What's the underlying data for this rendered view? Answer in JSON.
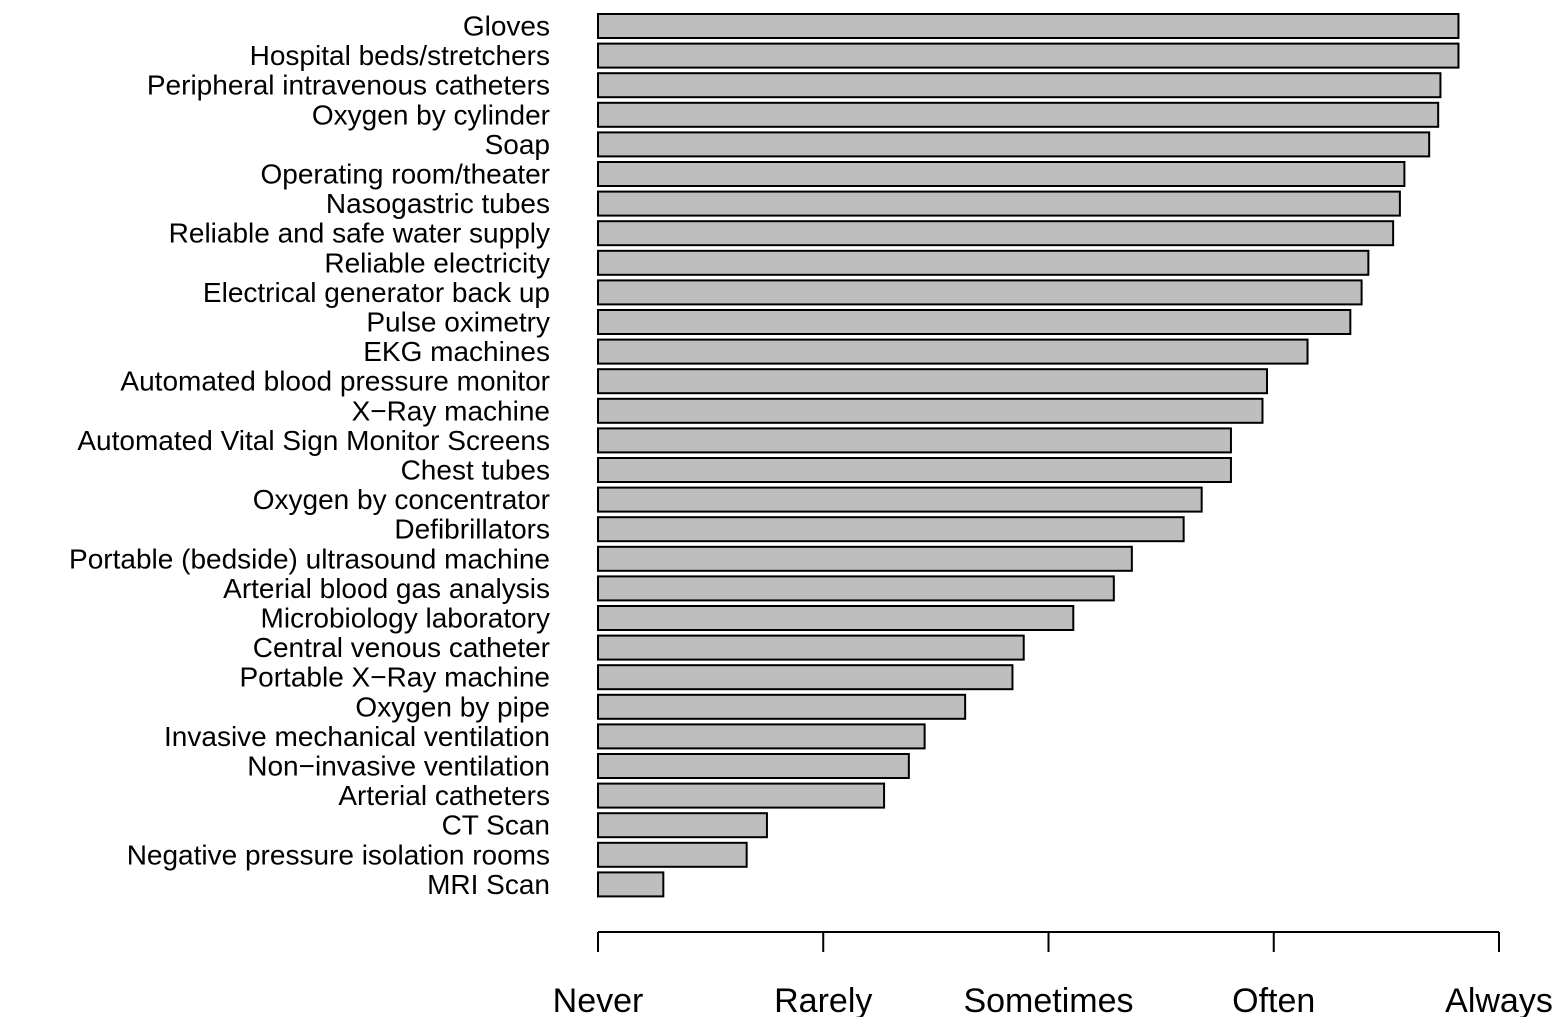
{
  "chart_data": {
    "type": "bar",
    "orientation": "horizontal",
    "categories": [
      "Gloves",
      "Hospital beds/stretchers",
      "Peripheral intravenous catheters",
      "Oxygen by cylinder",
      "Soap",
      "Operating room/theater",
      "Nasogastric tubes",
      "Reliable and safe water supply",
      "Reliable electricity",
      "Electrical generator back up",
      "Pulse oximetry",
      "EKG machines",
      "Automated blood pressure monitor",
      "X−Ray machine",
      "Automated Vital Sign Monitor Screens",
      "Chest tubes",
      "Oxygen by concentrator",
      "Defibrillators",
      "Portable (bedside) ultrasound machine",
      "Arterial blood gas analysis",
      "Microbiology laboratory",
      "Central venous catheter",
      "Portable X−Ray machine",
      "Oxygen by pipe",
      "Invasive mechanical ventilation",
      "Non−invasive ventilation",
      "Arterial catheters",
      "CT Scan",
      "Negative pressure isolation rooms",
      "MRI Scan"
    ],
    "values": [
      3.82,
      3.82,
      3.74,
      3.73,
      3.69,
      3.58,
      3.56,
      3.53,
      3.42,
      3.39,
      3.34,
      3.15,
      2.97,
      2.95,
      2.81,
      2.81,
      2.68,
      2.6,
      2.37,
      2.29,
      2.11,
      1.89,
      1.84,
      1.63,
      1.45,
      1.38,
      1.27,
      0.75,
      0.66,
      0.29
    ],
    "x_ticks": [
      0,
      1,
      2,
      3,
      4
    ],
    "x_tick_labels": [
      "Never",
      "Rarely",
      "Sometimes",
      "Often",
      "Always"
    ],
    "xlim": [
      0,
      4
    ],
    "title": "",
    "xlabel": "",
    "ylabel": "",
    "grid": false,
    "legend": "none",
    "bar_color": "#bebebe",
    "bar_edge_color": "#000000"
  }
}
